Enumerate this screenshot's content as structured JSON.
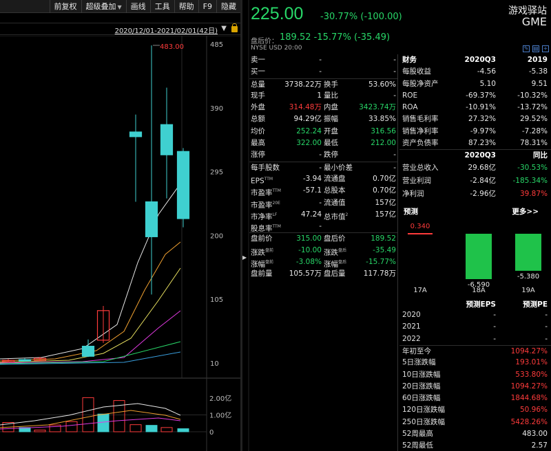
{
  "toolbar": {
    "items": [
      "前复权",
      "超级叠加",
      "画线",
      "工具",
      "帮助",
      "F9",
      "隐藏"
    ]
  },
  "chart": {
    "range_label": "2020/12/01-2021/02/01(42日)",
    "annotation": "483.00",
    "y_ticks": [
      "485",
      "390",
      "295",
      "200",
      "105",
      "10"
    ],
    "vol_ticks": [
      "2.00亿",
      "1.00亿",
      "0"
    ]
  },
  "chart_data": {
    "type": "candlestick",
    "ylim": [
      10,
      485
    ],
    "candles": [
      {
        "open": 12,
        "close": 14,
        "high": 16,
        "low": 11,
        "color": "red"
      },
      {
        "open": 15,
        "close": 13,
        "high": 17,
        "low": 12,
        "color": "cyan"
      },
      {
        "open": 14,
        "close": 17,
        "high": 19,
        "low": 13,
        "color": "red"
      },
      {
        "open": 35,
        "close": 20,
        "high": 45,
        "low": 19,
        "color": "cyan"
      },
      {
        "open": 44,
        "close": 88,
        "high": 95,
        "low": 40,
        "color": "red"
      },
      {
        "open": 354,
        "close": 347,
        "high": 380,
        "low": 250,
        "color": "cyan"
      },
      {
        "open": 250,
        "close": 198,
        "high": 483,
        "low": 112,
        "color": "cyan"
      },
      {
        "open": 365,
        "close": 320,
        "high": 420,
        "low": 255,
        "color": "cyan"
      },
      {
        "open": 325,
        "close": 225,
        "high": 330,
        "low": 212,
        "color": "cyan"
      }
    ],
    "volume": [
      0.55,
      0.25,
      0.6,
      1.05,
      2.02,
      1.1,
      1.85,
      0.8,
      0.38
    ],
    "vol_ylim": [
      0,
      2.2
    ]
  },
  "quote": {
    "price": "225.00",
    "change": "-30.77% (-100.00)",
    "name": "游戏驿站",
    "code": "GME",
    "after_label": "盘后价：",
    "after_value": "189.52 -15.77% (-35.49)",
    "market": "NYSE  USD  20:00"
  },
  "qtable": [
    {
      "a": "卖一",
      "b": "-",
      "c": "",
      "d": "-"
    },
    {
      "a": "买一",
      "b": "-",
      "c": "",
      "d": "-"
    },
    {
      "a": "总量",
      "b": "3738.22万",
      "c": "换手",
      "d": "53.60%"
    },
    {
      "a": "现手",
      "b": "1",
      "c": "量比",
      "d": "-"
    },
    {
      "a": "外盘",
      "b": "314.48万",
      "c": "内盘",
      "d": "3423.74万"
    },
    {
      "a": "总额",
      "b": "94.29亿",
      "c": "振幅",
      "d": "33.85%"
    },
    {
      "a": "均价",
      "b": "252.24",
      "c": "开盘",
      "d": "316.56"
    },
    {
      "a": "最高",
      "b": "322.00",
      "c": "最低",
      "d": "212.00"
    },
    {
      "a": "涨停",
      "b": "-",
      "c": "跌停",
      "d": "-"
    },
    {
      "a": "每手股数",
      "b": "-",
      "c": "最小价差",
      "d": "-"
    },
    {
      "a": "EPS",
      "as": "TTM",
      "b": "-3.94",
      "c": "流通盘",
      "d": "0.70亿"
    },
    {
      "a": "市盈率",
      "as": "TTM",
      "b": "-57.1",
      "c": "总股本",
      "d": "0.70亿"
    },
    {
      "a": "市盈率",
      "as": "20E",
      "b": "-",
      "c": "流通值",
      "d": "157亿"
    },
    {
      "a": "市净率",
      "as": "LF",
      "b": "47.24",
      "c": "总市值",
      "cs": "2",
      "d": "157亿"
    },
    {
      "a": "股息率",
      "as": "TTM",
      "b": "-",
      "c": "",
      "d": ""
    },
    {
      "a": "盘前价",
      "b": "315.00",
      "c": "盘后价",
      "d": "189.52"
    },
    {
      "a": "涨跌",
      "as": "盘前",
      "b": "-10.00",
      "c": "涨跌",
      "cs": "盘后",
      "d": "-35.49"
    },
    {
      "a": "涨幅",
      "as": "盘前",
      "b": "-3.08%",
      "c": "涨幅",
      "cs": "盘后",
      "d": "-15.77%"
    },
    {
      "a": "盘前量",
      "b": "105.57万",
      "c": "盘后量",
      "d": "117.78万"
    }
  ],
  "fin": {
    "head": {
      "a": "财务",
      "b": "2020Q3",
      "c": "2019"
    },
    "rows": [
      {
        "a": "每股收益",
        "b": "-4.56",
        "c": "-5.38"
      },
      {
        "a": "每股净资产",
        "b": "5.10",
        "c": "9.51"
      },
      {
        "a": "ROE",
        "b": "-69.37%",
        "c": "-10.32%"
      },
      {
        "a": "ROA",
        "b": "-10.91%",
        "c": "-13.72%"
      },
      {
        "a": "销售毛利率",
        "b": "27.32%",
        "c": "29.52%"
      },
      {
        "a": "销售净利率",
        "b": "-9.97%",
        "c": "-7.28%"
      },
      {
        "a": "资产负债率",
        "b": "87.23%",
        "c": "78.31%"
      }
    ],
    "head2": {
      "a": "",
      "b": "2020Q3",
      "c": "同比"
    },
    "rows2": [
      {
        "a": "营业总收入",
        "b": "29.68亿",
        "c": "-30.53%"
      },
      {
        "a": "营业利润",
        "b": "-2.84亿",
        "c": "-185.34%"
      },
      {
        "a": "净利润",
        "b": "-2.96亿",
        "c": "39.87%"
      }
    ]
  },
  "forecast": {
    "title": "预测",
    "more": "更多>>",
    "bars": [
      {
        "label": "17A",
        "value": 0.34,
        "text": "0.340"
      },
      {
        "label": "18A",
        "value": -6.59,
        "text": "-6.590"
      },
      {
        "label": "19A",
        "value": -5.38,
        "text": "-5.380"
      }
    ]
  },
  "pred": {
    "head_eps": "预测EPS",
    "head_pe": "预测PE",
    "rows": [
      {
        "year": "2020",
        "eps": "-",
        "pe": "-"
      },
      {
        "year": "2021",
        "eps": "-",
        "pe": "-"
      },
      {
        "year": "2022",
        "eps": "-",
        "pe": "-"
      }
    ]
  },
  "perf": [
    {
      "label": "年初至今",
      "value": "1094.27%"
    },
    {
      "label": "5日涨跌幅",
      "value": "193.01%"
    },
    {
      "label": "10日涨跌幅",
      "value": "533.80%"
    },
    {
      "label": "20日涨跌幅",
      "value": "1094.27%"
    },
    {
      "label": "60日涨跌幅",
      "value": "1844.68%"
    },
    {
      "label": "120日涨跌幅",
      "value": "50.96%"
    },
    {
      "label": "250日涨跌幅",
      "value": "5428.26%"
    },
    {
      "label": "52周最高",
      "value": "483.00"
    },
    {
      "label": "52周最低",
      "value": "2.57"
    }
  ],
  "colors": {
    "up": "#ff3b3b",
    "down": "#28d768",
    "candle_down": "#3fd0d0"
  }
}
